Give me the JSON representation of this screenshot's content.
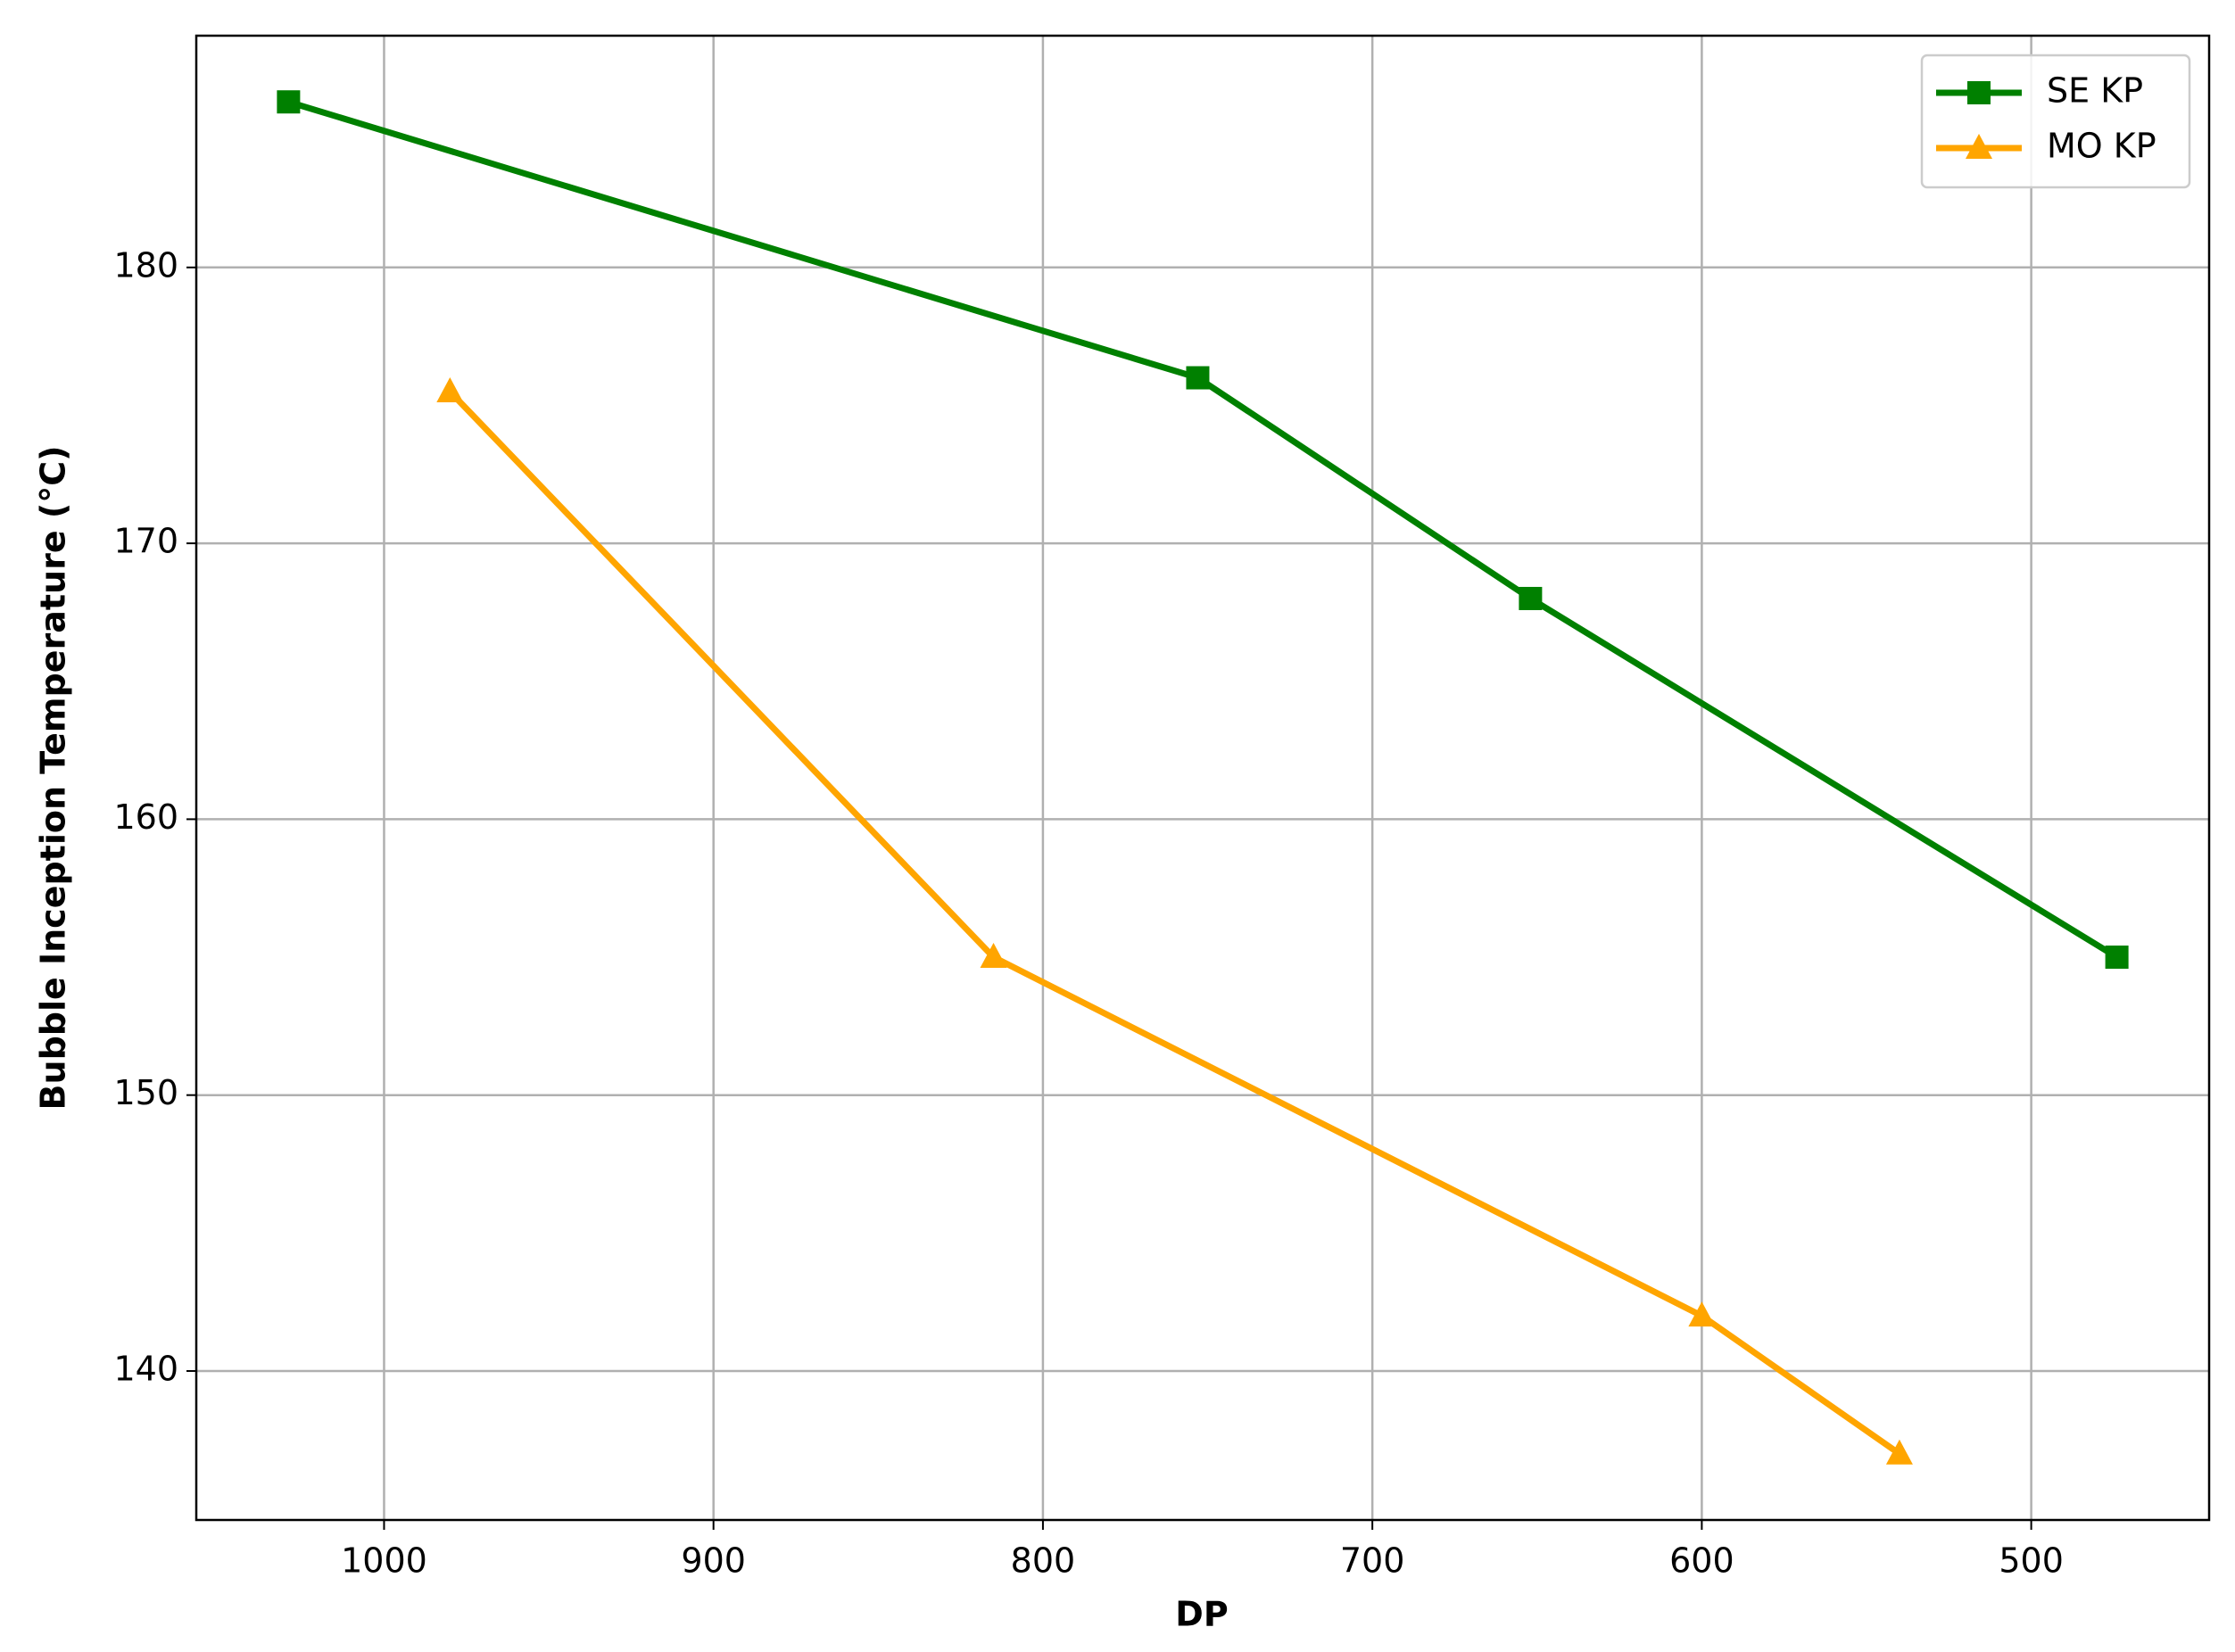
{
  "chart_data": {
    "type": "line",
    "xlabel": "DP",
    "ylabel": "Bubble Inception Temperature (°C)",
    "xlim": [
      1057,
      446
    ],
    "ylim": [
      134.6,
      188.4
    ],
    "xticks": [
      1000,
      900,
      800,
      700,
      600,
      500
    ],
    "yticks": [
      140,
      150,
      160,
      170,
      180
    ],
    "grid": true,
    "legend": "upper right",
    "series": [
      {
        "name": "SE KP",
        "color": "#008000",
        "marker": "square",
        "x": [
          1029,
          753,
          652,
          474
        ],
        "values": [
          186,
          176,
          168,
          155
        ]
      },
      {
        "name": "MO KP",
        "color": "#ffa500",
        "marker": "triangle",
        "x": [
          980,
          815,
          600,
          540
        ],
        "values": [
          175.5,
          155,
          142,
          137
        ]
      }
    ]
  }
}
